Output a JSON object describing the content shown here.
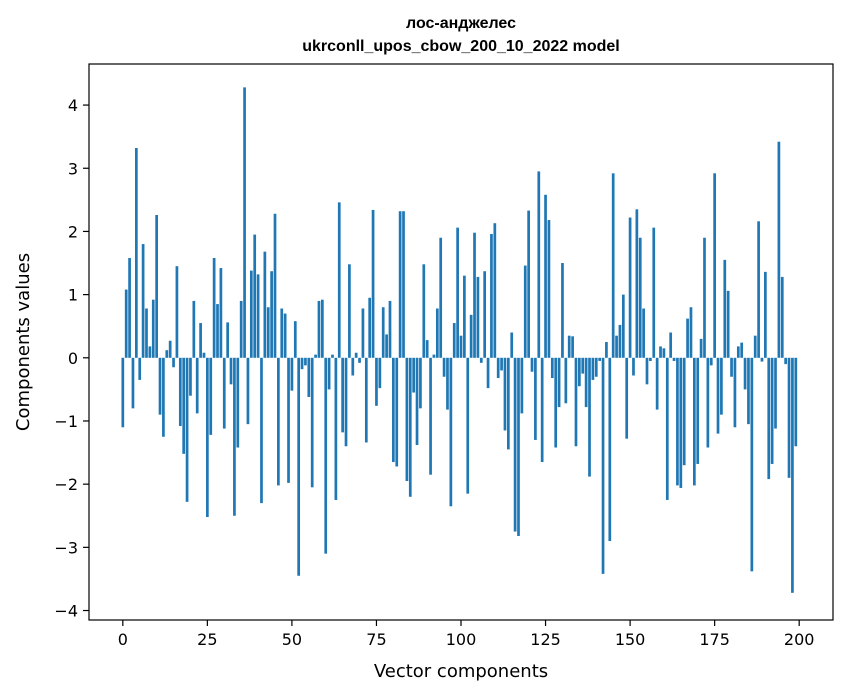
{
  "chart_data": {
    "type": "bar",
    "title_line1": "лос-анджелес",
    "title_line2": "ukrconll_upos_cbow_200_10_2022 model",
    "xlabel": "Vector components",
    "ylabel": "Components values",
    "xlim": [
      -10,
      210
    ],
    "ylim": [
      -4.15,
      4.65
    ],
    "xticks": [
      0,
      25,
      50,
      75,
      100,
      125,
      150,
      175,
      200
    ],
    "xtick_labels": [
      "0",
      "25",
      "50",
      "75",
      "100",
      "125",
      "150",
      "175",
      "200"
    ],
    "yticks": [
      -4,
      -3,
      -2,
      -1,
      0,
      1,
      2,
      3,
      4
    ],
    "ytick_labels": [
      "−4",
      "−3",
      "−2",
      "−1",
      "0",
      "1",
      "2",
      "3",
      "4"
    ],
    "grid": false,
    "bar_color": "#1f77b4",
    "x": [
      0,
      1,
      2,
      3,
      4,
      5,
      6,
      7,
      8,
      9,
      10,
      11,
      12,
      13,
      14,
      15,
      16,
      17,
      18,
      19,
      20,
      21,
      22,
      23,
      24,
      25,
      26,
      27,
      28,
      29,
      30,
      31,
      32,
      33,
      34,
      35,
      36,
      37,
      38,
      39,
      40,
      41,
      42,
      43,
      44,
      45,
      46,
      47,
      48,
      49,
      50,
      51,
      52,
      53,
      54,
      55,
      56,
      57,
      58,
      59,
      60,
      61,
      62,
      63,
      64,
      65,
      66,
      67,
      68,
      69,
      70,
      71,
      72,
      73,
      74,
      75,
      76,
      77,
      78,
      79,
      80,
      81,
      82,
      83,
      84,
      85,
      86,
      87,
      88,
      89,
      90,
      91,
      92,
      93,
      94,
      95,
      96,
      97,
      98,
      99,
      100,
      101,
      102,
      103,
      104,
      105,
      106,
      107,
      108,
      109,
      110,
      111,
      112,
      113,
      114,
      115,
      116,
      117,
      118,
      119,
      120,
      121,
      122,
      123,
      124,
      125,
      126,
      127,
      128,
      129,
      130,
      131,
      132,
      133,
      134,
      135,
      136,
      137,
      138,
      139,
      140,
      141,
      142,
      143,
      144,
      145,
      146,
      147,
      148,
      149,
      150,
      151,
      152,
      153,
      154,
      155,
      156,
      157,
      158,
      159,
      160,
      161,
      162,
      163,
      164,
      165,
      166,
      167,
      168,
      169,
      170,
      171,
      172,
      173,
      174,
      175,
      176,
      177,
      178,
      179,
      180,
      181,
      182,
      183,
      184,
      185,
      186,
      187,
      188,
      189,
      190,
      191,
      192,
      193,
      194,
      195,
      196,
      197,
      198,
      199
    ],
    "values": [
      -1.1,
      1.08,
      1.58,
      -0.8,
      3.32,
      -0.35,
      1.8,
      0.78,
      0.18,
      0.92,
      2.26,
      -0.9,
      -1.25,
      0.12,
      0.27,
      -0.15,
      1.45,
      -1.08,
      -1.52,
      -2.28,
      -0.6,
      0.9,
      -0.88,
      0.55,
      0.08,
      -2.52,
      -1.22,
      1.58,
      0.85,
      1.42,
      -1.12,
      0.56,
      -0.42,
      -2.5,
      -1.42,
      0.9,
      4.28,
      -1.05,
      1.38,
      1.95,
      1.32,
      -2.3,
      1.68,
      0.8,
      1.37,
      2.28,
      -2.02,
      0.78,
      0.7,
      -1.98,
      -0.52,
      0.58,
      -3.45,
      -0.18,
      -0.12,
      -0.62,
      -2.05,
      0.05,
      0.9,
      0.92,
      -3.1,
      -0.5,
      0.05,
      -2.25,
      2.46,
      -1.18,
      -1.4,
      1.48,
      -0.28,
      0.08,
      -0.08,
      0.78,
      -1.34,
      0.95,
      2.34,
      -0.76,
      -0.48,
      0.8,
      0.37,
      0.9,
      -1.65,
      -1.72,
      2.32,
      2.32,
      -1.95,
      -2.2,
      -0.55,
      -1.38,
      -0.8,
      1.48,
      0.28,
      -1.85,
      0.05,
      0.78,
      1.9,
      -0.3,
      -0.82,
      -2.35,
      0.55,
      2.06,
      0.35,
      1.3,
      -2.15,
      0.68,
      1.98,
      1.28,
      -0.08,
      1.37,
      -0.48,
      1.96,
      2.13,
      -0.32,
      -0.2,
      -1.15,
      -1.45,
      0.4,
      -2.75,
      -2.82,
      -0.88,
      1.46,
      2.33,
      -0.22,
      -1.3,
      2.95,
      -1.65,
      2.58,
      2.18,
      -0.32,
      -1.42,
      -0.78,
      1.5,
      -0.72,
      0.35,
      0.34,
      -1.4,
      -0.45,
      -0.25,
      -0.78,
      -1.88,
      -0.35,
      -0.3,
      -0.05,
      -3.42,
      0.25,
      -2.9,
      2.92,
      0.35,
      0.52,
      1.0,
      -1.28,
      2.22,
      -0.28,
      2.35,
      1.9,
      0.78,
      -0.42,
      -0.05,
      2.06,
      -0.82,
      0.18,
      0.15,
      -2.25,
      0.4,
      -0.05,
      -2.02,
      -2.06,
      -1.7,
      0.62,
      0.8,
      -2.02,
      -1.68,
      0.3,
      1.9,
      -1.42,
      -0.12,
      2.92,
      -1.2,
      -0.9,
      1.55,
      1.06,
      -0.3,
      -1.1,
      0.18,
      0.24,
      -0.5,
      -1.05,
      -3.38,
      0.35,
      2.16,
      -0.06,
      1.36,
      -1.92,
      -1.68,
      -1.12,
      3.42,
      1.28,
      -0.1,
      -1.9,
      -3.72,
      -1.4
    ]
  }
}
